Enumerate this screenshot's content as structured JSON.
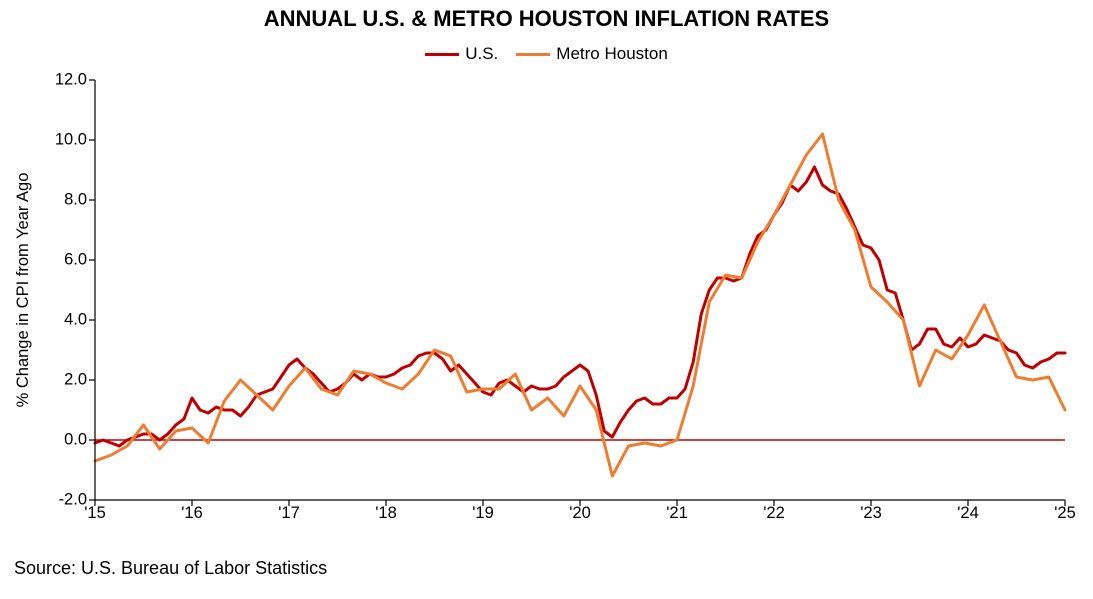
{
  "title": "ANNUAL U.S. & METRO HOUSTON INFLATION RATES",
  "yAxisTitle": "% Change in CPI from Year Ago",
  "source": "Source: U.S. Bureau of Labor Statistics",
  "yAxis": {
    "min": -2.0,
    "max": 12.0,
    "tickStep": 2.0,
    "ticks": [
      "-2.0",
      "0.0",
      "2.0",
      "4.0",
      "6.0",
      "8.0",
      "10.0",
      "12.0"
    ],
    "labelFontSize": 16.5
  },
  "xAxis": {
    "min": 2015,
    "max": 2025,
    "tickStep": 1,
    "tickLabels": [
      "'15",
      "'16",
      "'17",
      "'18",
      "'19",
      "'20",
      "'21",
      "'22",
      "'23",
      "'24",
      "'25"
    ],
    "labelFontSize": 16.5
  },
  "plot": {
    "widthPx": 970,
    "heightPx": 420,
    "leftPx": 95,
    "topPx": 80,
    "backgroundColor": "#ffffff",
    "axisColor": "#000000",
    "axisWidth": 1.2,
    "zeroLineColor": "#c00000",
    "zeroLineWidth": 1.4,
    "tickLengthPx": 6
  },
  "legend": {
    "items": [
      {
        "label": "U.S.",
        "color": "#c00000"
      },
      {
        "label": "Metro Houston",
        "color": "#ed7d31"
      }
    ],
    "fontSize": 17,
    "swatchWidth": 34,
    "swatchHeight": 3
  },
  "series": [
    {
      "name": "U.S.",
      "color": "#c00000",
      "lineWidth": 3,
      "dataX": [
        2015.0,
        2015.083,
        2015.167,
        2015.25,
        2015.333,
        2015.417,
        2015.5,
        2015.583,
        2015.667,
        2015.75,
        2015.833,
        2015.917,
        2016.0,
        2016.083,
        2016.167,
        2016.25,
        2016.333,
        2016.417,
        2016.5,
        2016.583,
        2016.667,
        2016.75,
        2016.833,
        2016.917,
        2017.0,
        2017.083,
        2017.167,
        2017.25,
        2017.333,
        2017.417,
        2017.5,
        2017.583,
        2017.667,
        2017.75,
        2017.833,
        2017.917,
        2018.0,
        2018.083,
        2018.167,
        2018.25,
        2018.333,
        2018.417,
        2018.5,
        2018.583,
        2018.667,
        2018.75,
        2018.833,
        2018.917,
        2019.0,
        2019.083,
        2019.167,
        2019.25,
        2019.333,
        2019.417,
        2019.5,
        2019.583,
        2019.667,
        2019.75,
        2019.833,
        2019.917,
        2020.0,
        2020.083,
        2020.167,
        2020.25,
        2020.333,
        2020.417,
        2020.5,
        2020.583,
        2020.667,
        2020.75,
        2020.833,
        2020.917,
        2021.0,
        2021.083,
        2021.167,
        2021.25,
        2021.333,
        2021.417,
        2021.5,
        2021.583,
        2021.667,
        2021.75,
        2021.833,
        2021.917,
        2022.0,
        2022.083,
        2022.167,
        2022.25,
        2022.333,
        2022.417,
        2022.5,
        2022.583,
        2022.667,
        2022.75,
        2022.833,
        2022.917,
        2023.0,
        2023.083,
        2023.167,
        2023.25,
        2023.333,
        2023.417,
        2023.5,
        2023.583,
        2023.667,
        2023.75,
        2023.833,
        2023.917,
        2024.0,
        2024.083,
        2024.167,
        2024.25,
        2024.333,
        2024.417,
        2024.5,
        2024.583,
        2024.667,
        2024.75,
        2024.833,
        2024.917,
        2025.0
      ],
      "dataY": [
        -0.1,
        0.0,
        -0.1,
        -0.2,
        0.0,
        0.1,
        0.2,
        0.2,
        0.0,
        0.2,
        0.5,
        0.7,
        1.4,
        1.0,
        0.9,
        1.1,
        1.0,
        1.0,
        0.8,
        1.1,
        1.5,
        1.6,
        1.7,
        2.1,
        2.5,
        2.7,
        2.4,
        2.2,
        1.9,
        1.6,
        1.7,
        1.9,
        2.2,
        2.0,
        2.2,
        2.1,
        2.1,
        2.2,
        2.4,
        2.5,
        2.8,
        2.9,
        2.9,
        2.7,
        2.3,
        2.5,
        2.2,
        1.9,
        1.6,
        1.5,
        1.9,
        2.0,
        1.8,
        1.6,
        1.8,
        1.7,
        1.7,
        1.8,
        2.1,
        2.3,
        2.5,
        2.3,
        1.5,
        0.3,
        0.1,
        0.6,
        1.0,
        1.3,
        1.4,
        1.2,
        1.2,
        1.4,
        1.4,
        1.7,
        2.6,
        4.2,
        5.0,
        5.4,
        5.4,
        5.3,
        5.4,
        6.2,
        6.8,
        7.0,
        7.5,
        7.9,
        8.5,
        8.3,
        8.6,
        9.1,
        8.5,
        8.3,
        8.2,
        7.7,
        7.1,
        6.5,
        6.4,
        6.0,
        5.0,
        4.9,
        4.0,
        3.0,
        3.2,
        3.7,
        3.7,
        3.2,
        3.1,
        3.4,
        3.1,
        3.2,
        3.5,
        3.4,
        3.3,
        3.0,
        2.9,
        2.5,
        2.4,
        2.6,
        2.7,
        2.9,
        2.9
      ]
    },
    {
      "name": "Metro Houston",
      "color": "#ed7d31",
      "lineWidth": 3,
      "dataX": [
        2015.0,
        2015.167,
        2015.333,
        2015.5,
        2015.667,
        2015.833,
        2016.0,
        2016.167,
        2016.333,
        2016.5,
        2016.667,
        2016.833,
        2017.0,
        2017.167,
        2017.333,
        2017.5,
        2017.667,
        2017.833,
        2018.0,
        2018.167,
        2018.333,
        2018.5,
        2018.667,
        2018.833,
        2019.0,
        2019.167,
        2019.333,
        2019.5,
        2019.667,
        2019.833,
        2020.0,
        2020.167,
        2020.333,
        2020.5,
        2020.667,
        2020.833,
        2021.0,
        2021.167,
        2021.333,
        2021.5,
        2021.667,
        2021.833,
        2022.0,
        2022.167,
        2022.333,
        2022.5,
        2022.667,
        2022.833,
        2023.0,
        2023.167,
        2023.333,
        2023.5,
        2023.667,
        2023.833,
        2024.0,
        2024.167,
        2024.333,
        2024.5,
        2024.667,
        2024.833,
        2025.0
      ],
      "dataY": [
        -0.7,
        -0.5,
        -0.2,
        0.5,
        -0.3,
        0.3,
        0.4,
        -0.1,
        1.3,
        2.0,
        1.5,
        1.0,
        1.8,
        2.4,
        1.7,
        1.5,
        2.3,
        2.2,
        1.9,
        1.7,
        2.2,
        3.0,
        2.8,
        1.6,
        1.7,
        1.7,
        2.2,
        1.0,
        1.4,
        0.8,
        1.8,
        1.0,
        -1.2,
        -0.2,
        -0.1,
        -0.2,
        0.0,
        1.8,
        4.6,
        5.5,
        5.4,
        6.6,
        7.5,
        8.5,
        9.5,
        10.2,
        8.0,
        7.0,
        5.1,
        4.6,
        4.0,
        1.8,
        3.0,
        2.7,
        3.5,
        4.5,
        3.3,
        2.1,
        2.0,
        2.1,
        1.0
      ]
    }
  ]
}
